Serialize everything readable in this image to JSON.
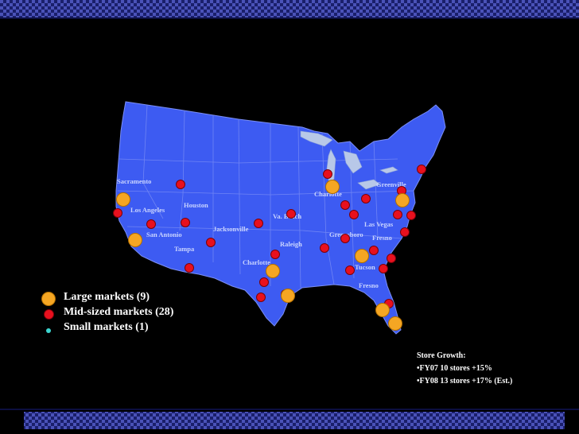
{
  "colors": {
    "background": "#000000",
    "land": "#3d5bf2",
    "water": "#b8c8e8",
    "large_marker": "#f5a623",
    "mid_marker": "#e8101e",
    "small_marker": "#3dd6d0"
  },
  "cities": [
    {
      "name": "Sacramento"
    },
    {
      "name": "Houston"
    },
    {
      "name": "Los Angeles"
    },
    {
      "name": "San Antonio"
    },
    {
      "name": "Tampa"
    },
    {
      "name": "Jacksonville"
    },
    {
      "name": "Va. Beach"
    },
    {
      "name": "Charlotte"
    },
    {
      "name": "Raleigh"
    },
    {
      "name": "Charlotte"
    },
    {
      "name": "Greenville"
    },
    {
      "name": "Las Vegas"
    },
    {
      "name": "Greensboro"
    },
    {
      "name": "Fresno"
    },
    {
      "name": "Tucson"
    },
    {
      "name": "Fresno"
    }
  ],
  "legend": [
    {
      "label": "Large markets (9)",
      "type": "large"
    },
    {
      "label": "Mid-sized markets (28)",
      "type": "mid"
    },
    {
      "label": "Small markets (1)",
      "type": "small"
    }
  ],
  "growth": {
    "title": "Store Growth:",
    "lines": [
      "•FY07  10 stores  +15%",
      "•FY08  13 stores  +17% (Est.)"
    ]
  }
}
